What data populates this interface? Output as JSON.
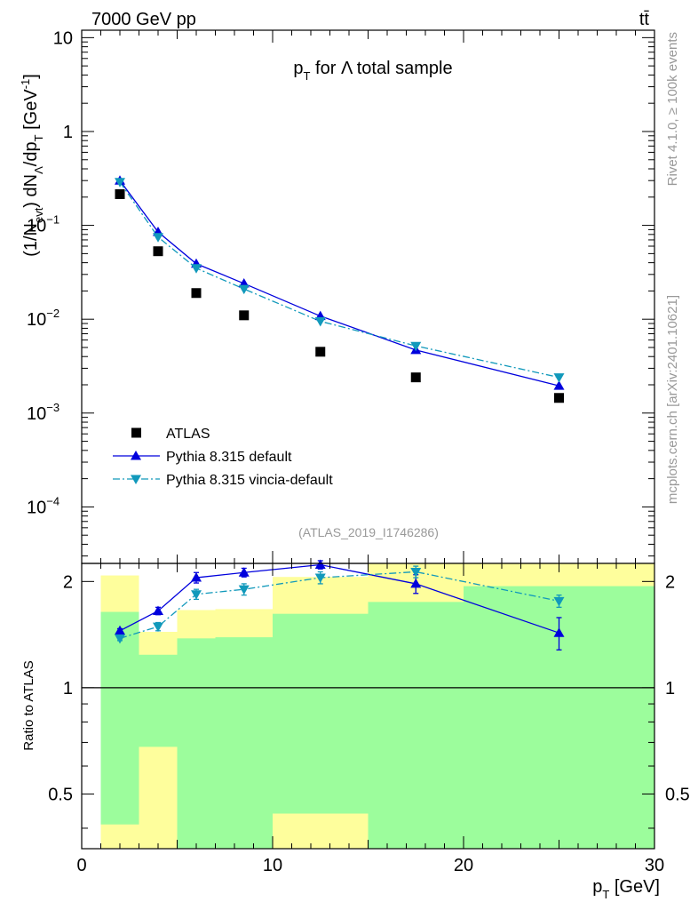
{
  "chart_data": {
    "type": "scatter",
    "header_left": "7000 GeV pp",
    "header_right": "tt̄",
    "title": {
      "p": "p",
      "sub": "T",
      "rest": " for Λ total sample"
    },
    "analysis_label": "(ATLAS_2019_I1746286)",
    "side_label_top": "Rivet 4.1.0, ≥ 100k events",
    "side_label_bottom": "mcplots.cern.ch [arXiv:2401.10621]",
    "ylabel_main": "(1/N_evt) dN_Λ/dp_T [GeV^-1]",
    "ylabel_ratio": "Ratio to ATLAS",
    "xlabel": {
      "p": "p",
      "sub": "T",
      "unit": " [GeV]"
    },
    "xlim": [
      0,
      30
    ],
    "ylim_main": [
      2.5e-05,
      12
    ],
    "ylim_ratio": [
      0.35,
      2.25
    ],
    "x_ticks": [
      "0",
      "10",
      "20",
      "30"
    ],
    "y_ticks_main": [
      {
        "v": 10,
        "label": "10",
        "exp": ""
      },
      {
        "v": 1,
        "label": "1",
        "exp": ""
      },
      {
        "v": 0.1,
        "label": "10",
        "exp": "−1"
      },
      {
        "v": 0.01,
        "label": "10",
        "exp": "−2"
      },
      {
        "v": 0.001,
        "label": "10",
        "exp": "−3"
      },
      {
        "v": 0.0001,
        "label": "10",
        "exp": "−4"
      }
    ],
    "y_ticks_ratio": [
      "0.5",
      "1",
      "2"
    ],
    "legend": [
      "ATLAS",
      "Pythia 8.315 default",
      "Pythia 8.315 vincia-default"
    ],
    "bins": [
      {
        "lo": 1,
        "hi": 3
      },
      {
        "lo": 3,
        "hi": 5
      },
      {
        "lo": 5,
        "hi": 7
      },
      {
        "lo": 7,
        "hi": 10
      },
      {
        "lo": 10,
        "hi": 15
      },
      {
        "lo": 15,
        "hi": 20
      },
      {
        "lo": 20,
        "hi": 30
      }
    ],
    "x": [
      2,
      4,
      6,
      8.5,
      12.5,
      17.5,
      25
    ],
    "series": [
      {
        "name": "ATLAS",
        "color": "#000000",
        "marker": "square",
        "values": [
          0.215,
          0.053,
          0.019,
          0.011,
          0.0045,
          0.0024,
          0.00145
        ]
      },
      {
        "name": "Pythia 8.315 default",
        "color": "#0000dd",
        "marker": "triangle-up",
        "line": "solid",
        "values": [
          0.3,
          0.085,
          0.039,
          0.024,
          0.0108,
          0.0047,
          0.00195
        ]
      },
      {
        "name": "Pythia 8.315 vincia-default",
        "color": "#1199bb",
        "marker": "triangle-down",
        "line": "dashdot",
        "values": [
          0.29,
          0.075,
          0.035,
          0.021,
          0.0095,
          0.0052,
          0.0024
        ]
      }
    ],
    "ratio_series": [
      {
        "name": "Pythia 8.315 default",
        "values": [
          1.45,
          1.65,
          2.05,
          2.12,
          2.23,
          1.97,
          1.43
        ],
        "errors": [
          0.02,
          0.04,
          0.07,
          0.06,
          0.06,
          0.12,
          0.15
        ]
      },
      {
        "name": "Pythia 8.315 vincia-default",
        "values": [
          1.38,
          1.49,
          1.84,
          1.9,
          2.05,
          2.13,
          1.76
        ],
        "errors": [
          0.02,
          0.04,
          0.06,
          0.07,
          0.08,
          0.08,
          0.07
        ]
      }
    ],
    "uncertainty_bands": {
      "stat": [
        {
          "lo": 0.41,
          "hi": 1.64
        },
        {
          "lo": 0.68,
          "hi": 1.24
        },
        {
          "lo": 0.35,
          "hi": 1.38
        },
        {
          "lo": 0.35,
          "hi": 1.39
        },
        {
          "lo": 0.44,
          "hi": 1.62
        },
        {
          "lo": 0.35,
          "hi": 1.75
        },
        {
          "lo": 0.35,
          "hi": 1.94
        }
      ],
      "total": [
        {
          "lo": 0.35,
          "hi": 2.08
        },
        {
          "lo": 0.35,
          "hi": 1.44
        },
        {
          "lo": 0.35,
          "hi": 1.66
        },
        {
          "lo": 0.35,
          "hi": 1.67
        },
        {
          "lo": 0.35,
          "hi": 2.06
        },
        {
          "lo": 0.35,
          "hi": 2.25
        },
        {
          "lo": 0.35,
          "hi": 2.25
        }
      ]
    },
    "colors": {
      "stat_band": "#9cfd9c",
      "total_band": "#fefe9c",
      "axis": "#000000",
      "grey_text": "#999999"
    }
  }
}
